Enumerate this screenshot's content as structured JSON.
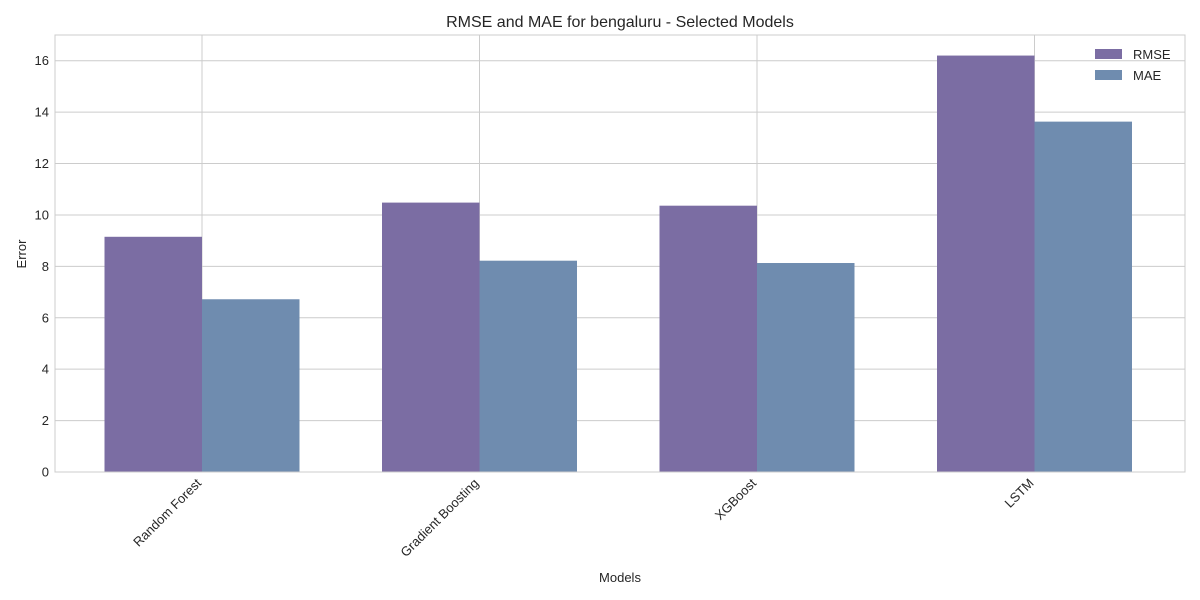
{
  "chart_data": {
    "type": "bar",
    "title": "RMSE and MAE for bengaluru - Selected Models",
    "xlabel": "Models",
    "ylabel": "Error",
    "categories": [
      "Random Forest",
      "Gradient Boosting",
      "XGBoost",
      "LSTM"
    ],
    "series": [
      {
        "name": "RMSE",
        "values": [
          9.15,
          10.48,
          10.36,
          16.2
        ],
        "color": "#7b6da3"
      },
      {
        "name": "MAE",
        "values": [
          6.72,
          8.22,
          8.13,
          13.63
        ],
        "color": "#6f8caf"
      }
    ],
    "ylim": [
      0,
      17
    ],
    "yticks": [
      0,
      2,
      4,
      6,
      8,
      10,
      12,
      14,
      16
    ],
    "grid": true,
    "legend_position": "top-right",
    "xtick_rotation": -45
  }
}
